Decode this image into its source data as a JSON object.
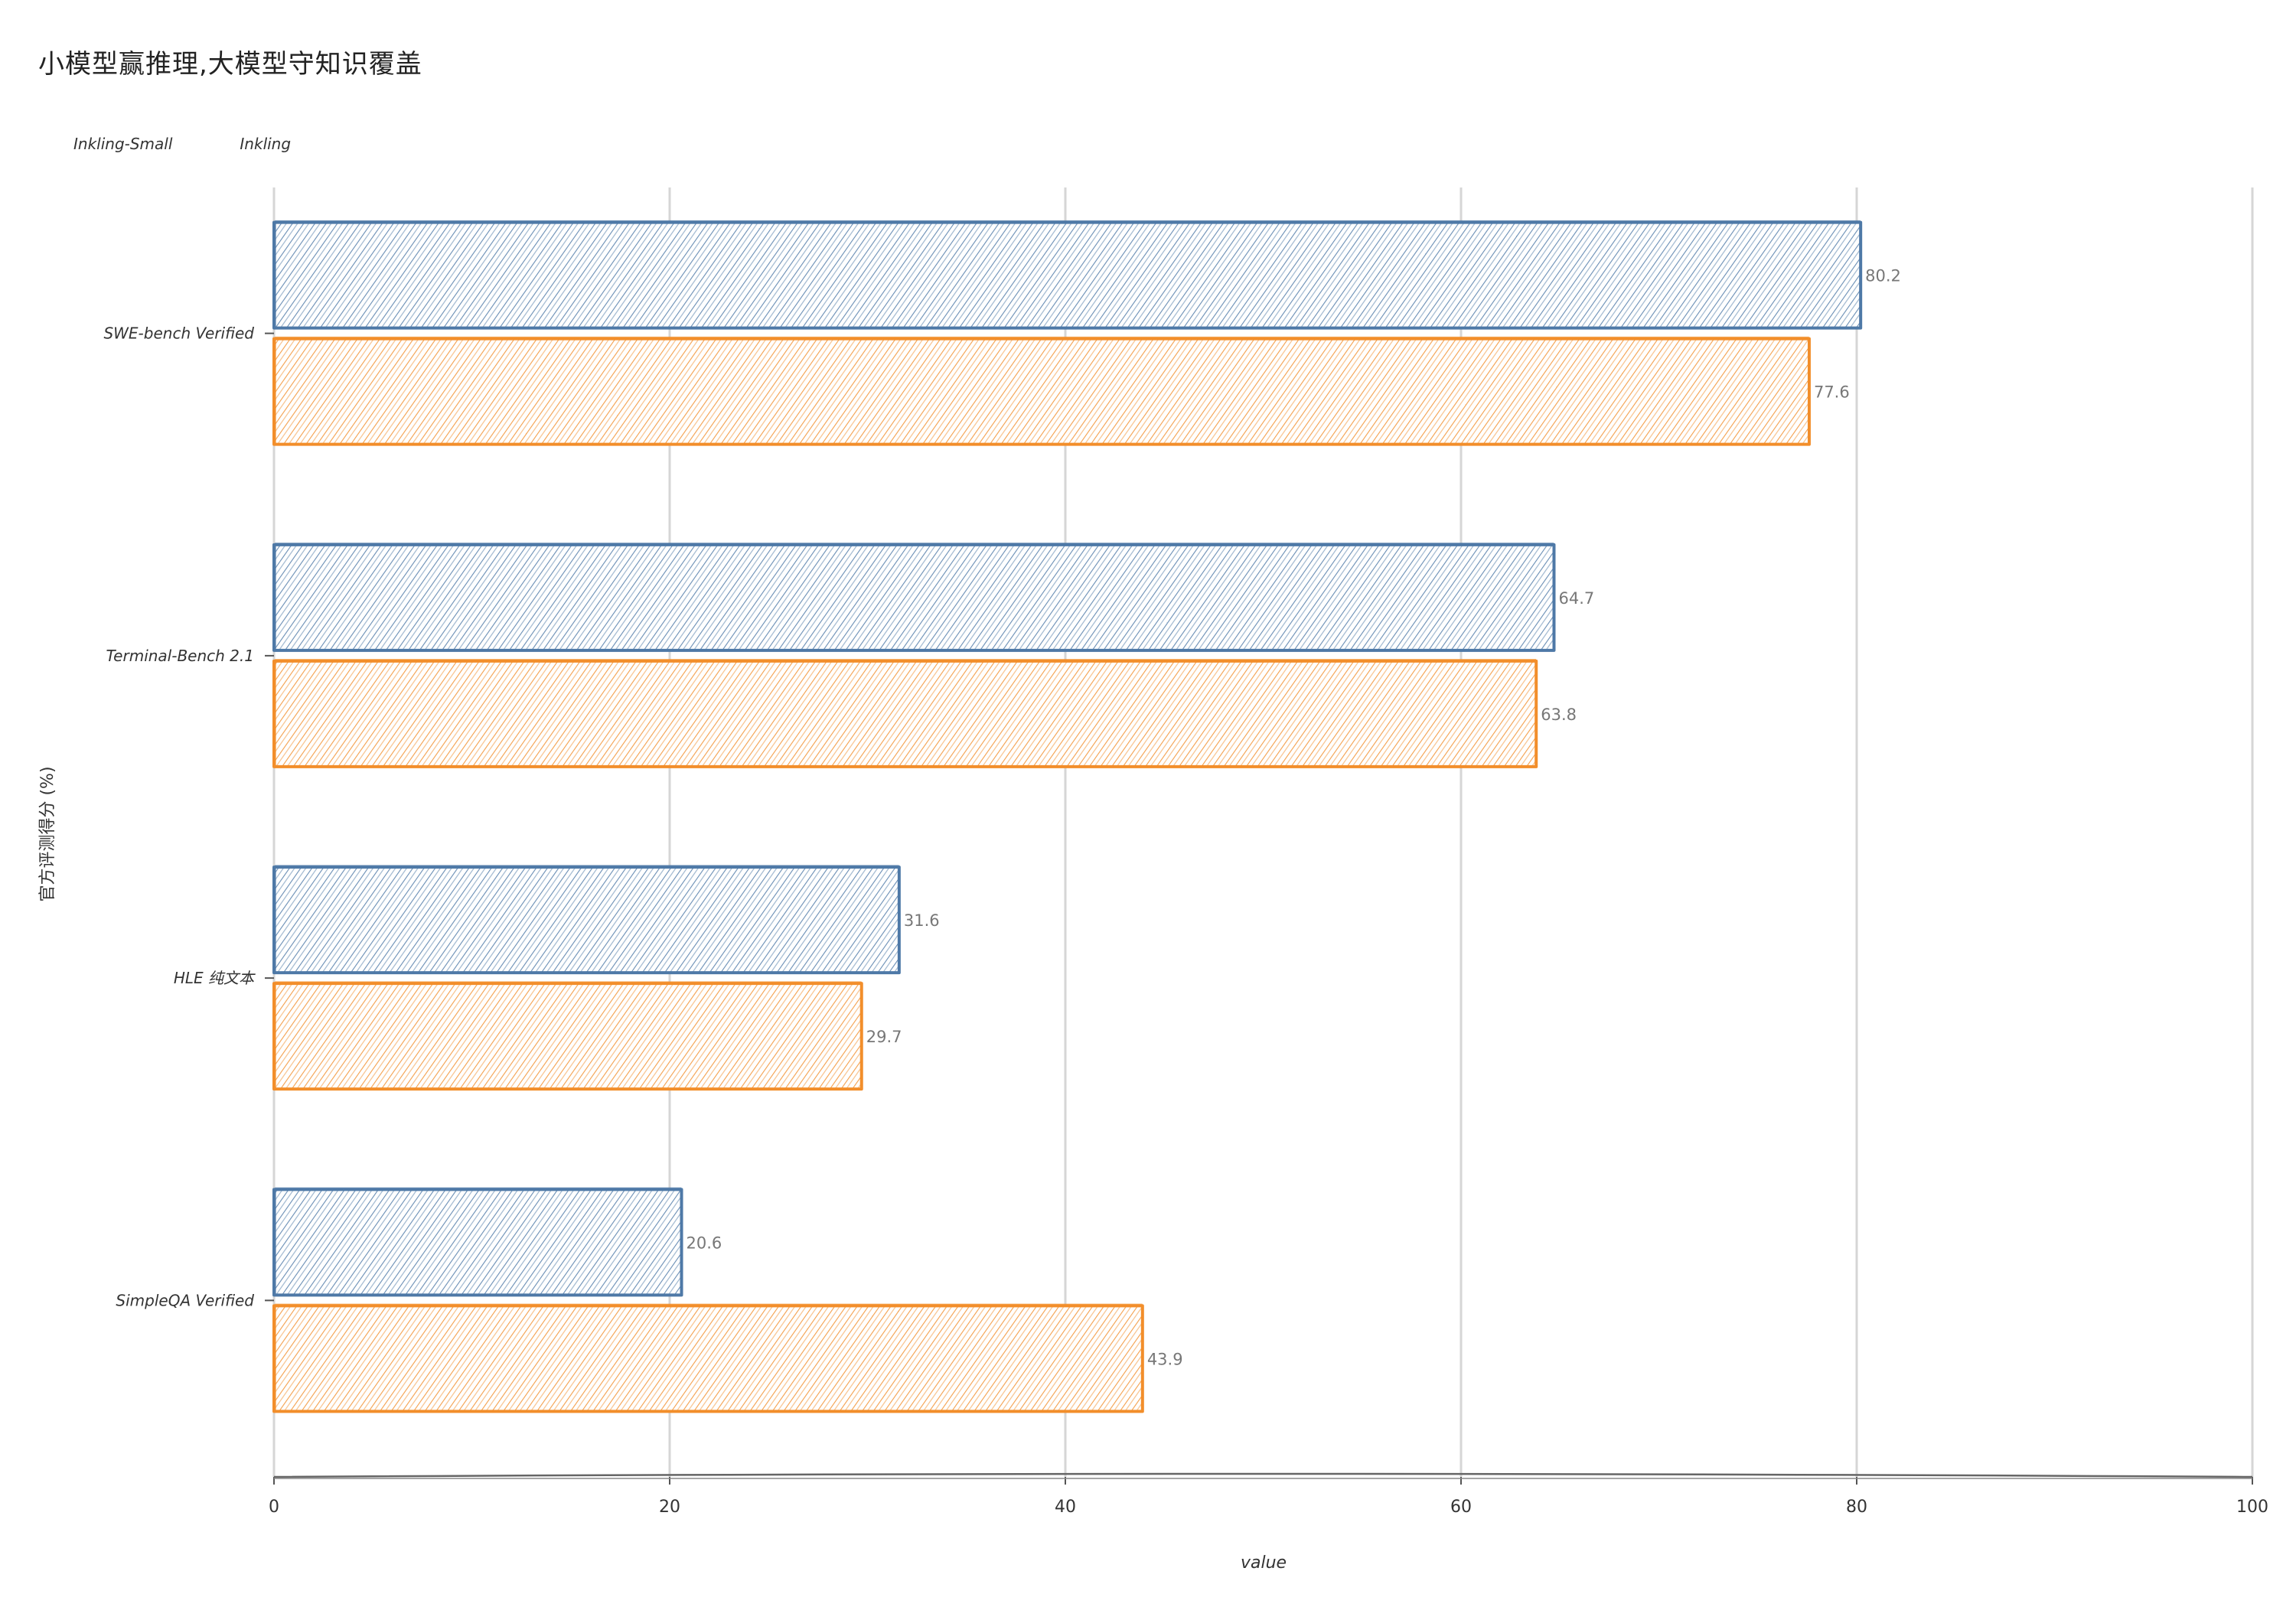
{
  "chart_data": {
    "type": "bar",
    "orientation": "horizontal",
    "title": "小模型赢推理,大模型守知识覆盖",
    "xlabel": "value",
    "ylabel": "官方评测得分 (%)",
    "categories": [
      "SWE-bench Verified",
      "Terminal-Bench 2.1",
      "HLE 纯文本",
      "SimpleQA Verified"
    ],
    "series": [
      {
        "name": "Inkling-Small",
        "color": "#4e79a7",
        "values": [
          80.2,
          64.7,
          31.6,
          20.6
        ]
      },
      {
        "name": "Inkling",
        "color": "#f28e2b",
        "values": [
          77.6,
          63.8,
          29.7,
          43.9
        ]
      }
    ],
    "xlim": [
      0,
      100
    ],
    "xticks": [
      0,
      20,
      40,
      60,
      80,
      100
    ],
    "grid": true,
    "legend_position": "top-left",
    "style": "hand-drawn hatched"
  }
}
